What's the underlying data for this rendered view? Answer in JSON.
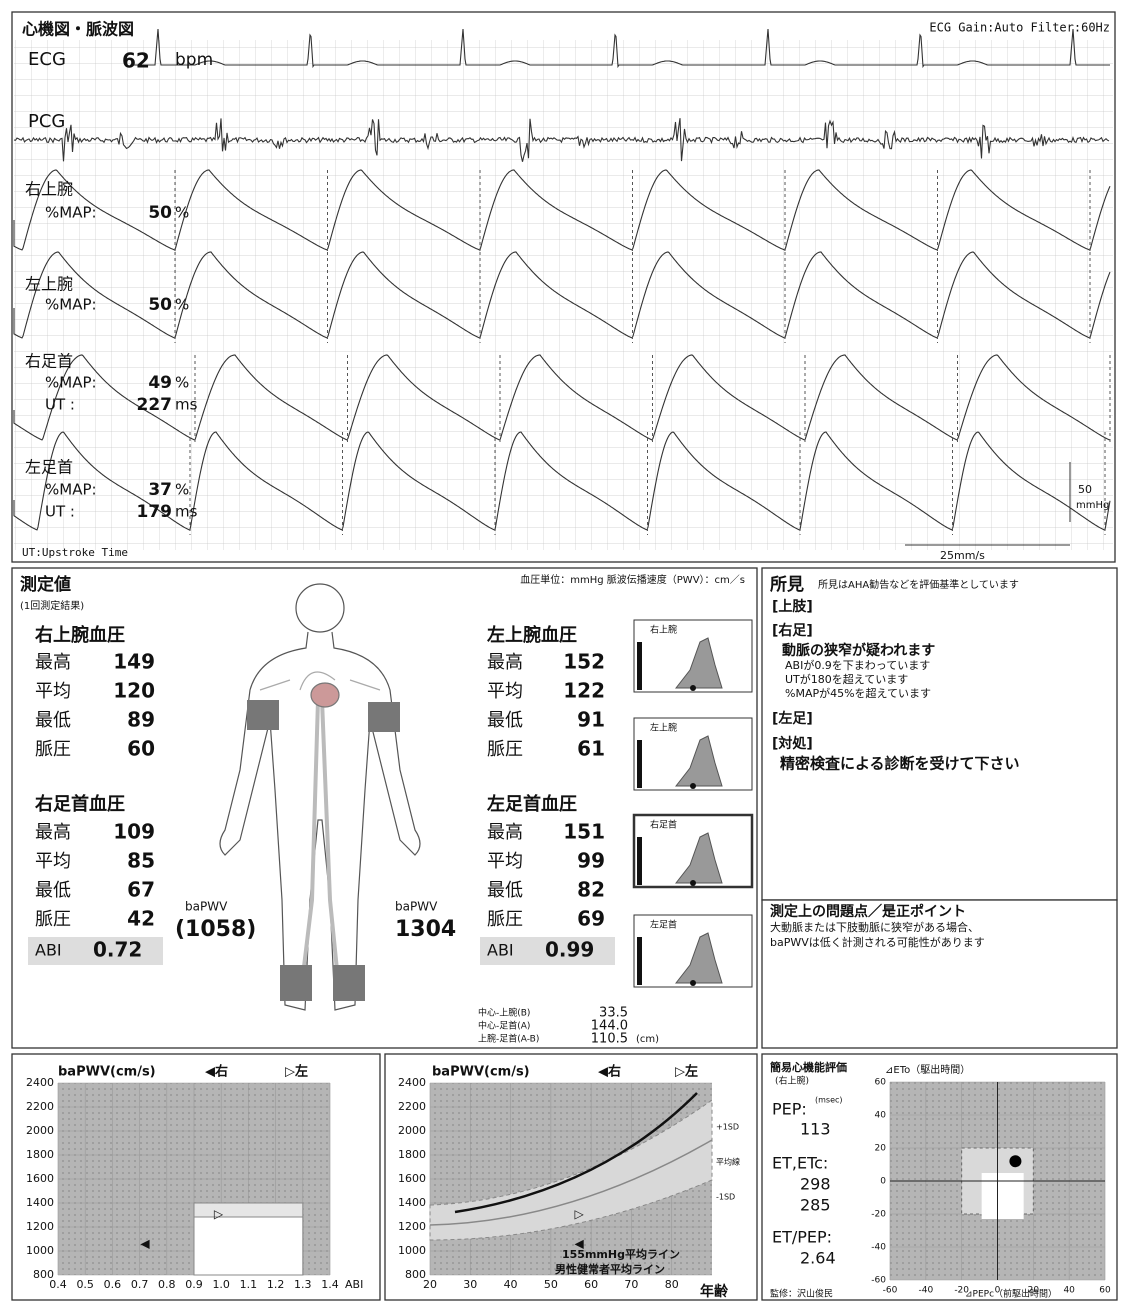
{
  "waveform_panel": {
    "title": "心機図・脈波図",
    "settings": "ECG Gain:Auto  Filter:60Hz",
    "ecg": {
      "label": "ECG",
      "value": "62",
      "unit": "bpm"
    },
    "pcg": {
      "label": "PCG"
    },
    "channels": [
      {
        "label": "右上腕",
        "rows": [
          {
            "name": "%MAP:",
            "value": "50",
            "unit": "%"
          }
        ]
      },
      {
        "label": "左上腕",
        "rows": [
          {
            "name": "%MAP:",
            "value": "50",
            "unit": "%"
          }
        ]
      },
      {
        "label": "右足首",
        "rows": [
          {
            "name": "%MAP:",
            "value": "49",
            "unit": "%"
          },
          {
            "name": "UT  :",
            "value": "227",
            "unit": "ms"
          }
        ]
      },
      {
        "label": "左足首",
        "rows": [
          {
            "name": "%MAP:",
            "value": "37",
            "unit": "%"
          },
          {
            "name": "UT  :",
            "value": "179",
            "unit": "ms"
          }
        ]
      }
    ],
    "footnote": "UT:Upstroke Time",
    "scale_value": "50",
    "scale_unit": "mmHg",
    "speed": "25mm/s"
  },
  "measurements": {
    "title": "測定値",
    "subtitle": "(1回測定結果)",
    "units": "血圧単位：mmHg  脈波伝播速度（PWV）：cm／s",
    "sides": [
      {
        "arm_title": "右上腕血圧",
        "arm": [
          [
            "最高",
            "149"
          ],
          [
            "平均",
            "120"
          ],
          [
            "最低",
            "89"
          ],
          [
            "脈圧",
            "60"
          ]
        ],
        "ankle_title": "右足首血圧",
        "ankle": [
          [
            "最高",
            "109"
          ],
          [
            "平均",
            "85"
          ],
          [
            "最低",
            "67"
          ],
          [
            "脈圧",
            "42"
          ]
        ],
        "abi_label": "ABI",
        "abi": "0.72",
        "bapwv_label": "baPWV",
        "bapwv": "(1058)"
      },
      {
        "arm_title": "左上腕血圧",
        "arm": [
          [
            "最高",
            "152"
          ],
          [
            "平均",
            "122"
          ],
          [
            "最低",
            "91"
          ],
          [
            "脈圧",
            "61"
          ]
        ],
        "ankle_title": "左足首血圧",
        "ankle": [
          [
            "最高",
            "151"
          ],
          [
            "平均",
            "99"
          ],
          [
            "最低",
            "82"
          ],
          [
            "脈圧",
            "69"
          ]
        ],
        "abi_label": "ABI",
        "abi": "0.99",
        "bapwv_label": "baPWV",
        "bapwv": "1304"
      }
    ],
    "waveform_labels": [
      "右上腕",
      "左上腕",
      "右足首",
      "左足首"
    ],
    "distances": [
      {
        "label": "中心-上腕(B)",
        "value": "33.5"
      },
      {
        "label": "中心-足首(A)",
        "value": "144.0"
      },
      {
        "label": "上腕-足首(A-B)",
        "value": "110.5",
        "unit": "(cm)"
      }
    ]
  },
  "findings": {
    "title": "所見",
    "note": "所見はAHA勧告などを評価基準としています",
    "lines": [
      "[上肢]",
      "[右足]",
      "動脈の狭窄が疑われます",
      "ABIが0.9を下まわっています",
      "UTが180を超えています",
      "%MAPが45%を超えています",
      "[左足]",
      "[対処]",
      "精密検査による診断を受けて下さい"
    ],
    "problems_title": "測定上の問題点／是正ポイント",
    "problems": [
      "大動脈または下肢動脈に狭窄がある場合、",
      "baPWVは低く計測される可能性があります"
    ]
  },
  "chart_data": [
    {
      "type": "scatter",
      "title": "baPWV(cm/s)",
      "legend": [
        "◀右",
        "▷左"
      ],
      "x_label": "ABI",
      "xlim": [
        0.4,
        1.4
      ],
      "xticks": [
        0.4,
        0.5,
        0.6,
        0.7,
        0.8,
        0.9,
        {
          "value": 1,
          "label": "1.0"
        },
        1.1,
        1.2,
        1.3,
        1.4
      ],
      "ylim": [
        800,
        2400
      ],
      "yticks": [
        800,
        1000,
        1200,
        1400,
        1600,
        1800,
        2000,
        2200,
        2400
      ],
      "points": [
        {
          "x": 0.72,
          "y": 1058,
          "marker": "◀"
        },
        {
          "x": 0.99,
          "y": 1304,
          "marker": "▷"
        }
      ]
    },
    {
      "type": "line",
      "title": "baPWV(cm/s)",
      "legend": [
        "◀右",
        "▷左"
      ],
      "x_label": "年齢",
      "xlim": [
        20,
        90
      ],
      "xticks": [
        20,
        30,
        40,
        50,
        60,
        70,
        80
      ],
      "ylim": [
        800,
        2400
      ],
      "yticks": [
        800,
        1000,
        1200,
        1400,
        1600,
        1800,
        2000,
        2200,
        2400
      ],
      "band_labels": [
        "+1SD",
        "平均線",
        "-1SD"
      ],
      "notes": [
        "155mmHg平均ライン",
        "男性健常者平均ライン"
      ],
      "points": [
        {
          "x": 57,
          "y": 1058,
          "marker": "◀"
        },
        {
          "x": 57,
          "y": 1304,
          "marker": "▷"
        }
      ]
    },
    {
      "type": "scatter",
      "title": "簡易心機能評価",
      "subtitle": "(右上腕)",
      "y_label": "⊿ETo（駆出時間）",
      "x_label": "⊿PEPc（前駆出時間）",
      "xlim": [
        -60,
        60
      ],
      "xticks": [
        -60,
        -40,
        -20,
        0,
        20,
        40,
        60
      ],
      "ylim": [
        -60,
        60
      ],
      "yticks": [
        -60,
        -40,
        -20,
        0,
        20,
        40,
        60
      ],
      "pep_label": "PEP:",
      "pep_unit": "(msec)",
      "pep": "113",
      "et_label": "ET,ETc:",
      "et": "298",
      "etc": "285",
      "ratio_label": "ET/PEP:",
      "ratio": "2.64",
      "supervisor": "監修：沢山俊民",
      "points": [
        {
          "x": 10,
          "y": 12
        }
      ]
    }
  ]
}
